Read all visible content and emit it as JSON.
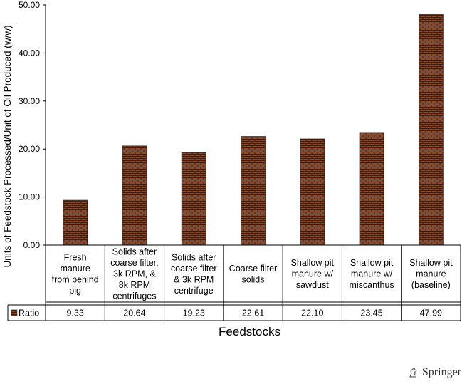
{
  "chart_data": {
    "type": "bar",
    "ylabel": "Units of Feedstock Processed/Unit of Oil Produced (w/w)",
    "xlabel": "Feedstocks",
    "ylim": [
      0,
      50
    ],
    "yticks": [
      "0.00",
      "10.00",
      "20.00",
      "30.00",
      "40.00",
      "50.00"
    ],
    "grid": false,
    "categories": [
      [
        "Fresh",
        "manure",
        "from behind",
        "pig"
      ],
      [
        "Solids after",
        "coarse filter,",
        "3k RPM, &",
        "8k RPM",
        "centrifuges"
      ],
      [
        "Solids after",
        "coarse filter",
        "& 3k RPM",
        "centrifuge"
      ],
      [
        "Coarse filter",
        "solids"
      ],
      [
        "Shallow pit",
        "manure w/",
        "sawdust"
      ],
      [
        "Shallow pit",
        "manure w/",
        "miscanthus"
      ],
      [
        "Shallow pit",
        "manure",
        "(baseline)"
      ]
    ],
    "series": [
      {
        "name": "Ratio",
        "values": [
          9.33,
          20.64,
          19.23,
          22.61,
          22.1,
          23.45,
          47.99
        ],
        "labels": [
          "9.33",
          "20.64",
          "19.23",
          "22.61",
          "22.10",
          "23.45",
          "47.99"
        ]
      }
    ],
    "colors": {
      "bar_fill": "#8b4a2b",
      "brick_line": "#3a1e10",
      "axis": "#000000"
    }
  },
  "publisher": {
    "name": "Springer",
    "icon": "springer-horse-icon"
  }
}
